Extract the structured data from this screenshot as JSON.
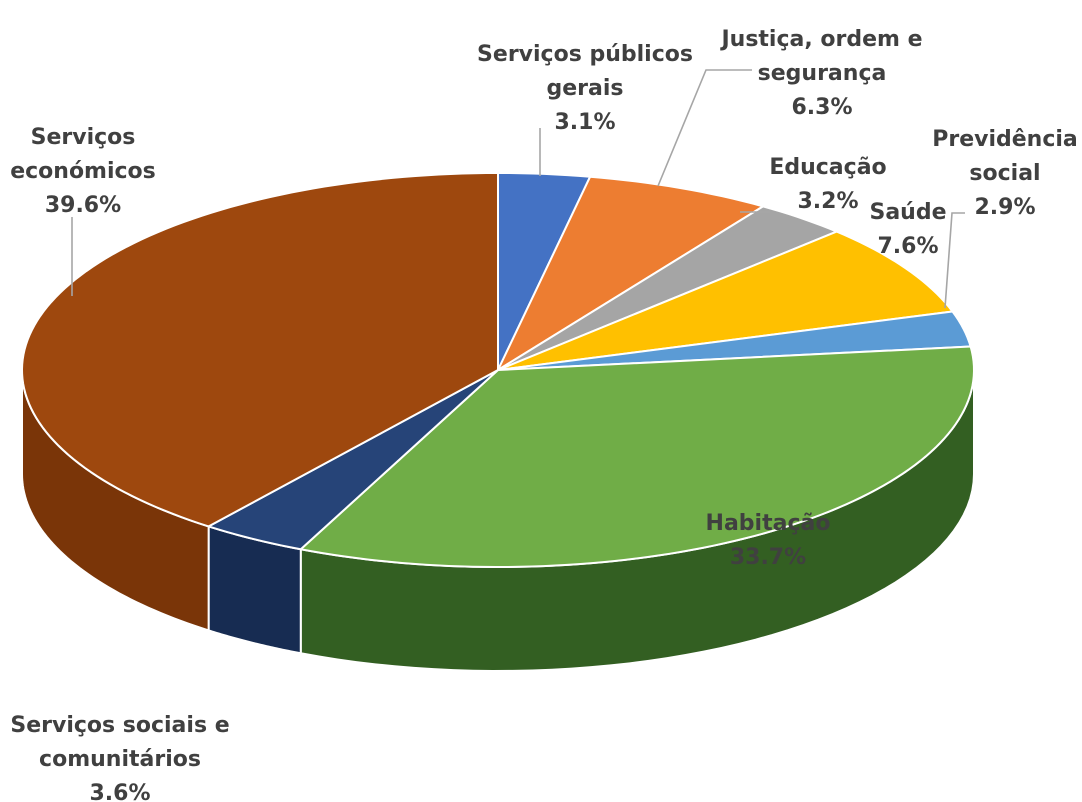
{
  "chart_data": {
    "type": "pie",
    "style": "3d",
    "title": "",
    "slices": [
      {
        "label_lines": [
          "Serviços públicos",
          "gerais"
        ],
        "value_label": "3.1%",
        "value": 3.1,
        "color": "#4472c4",
        "side": "#2c4d8a"
      },
      {
        "label_lines": [
          "Justiça, ordem e",
          "segurança"
        ],
        "value_label": "6.3%",
        "value": 6.3,
        "color": "#ed7d31",
        "side": "#b35a1f"
      },
      {
        "label_lines": [
          "Educação"
        ],
        "value_label": "3.2%",
        "value": 3.2,
        "color": "#a5a5a5",
        "side": "#7a7a7a"
      },
      {
        "label_lines": [
          "Saúde"
        ],
        "value_label": "7.6%",
        "value": 7.6,
        "color": "#ffc000",
        "side": "#c89400"
      },
      {
        "label_lines": [
          "Previdência",
          "social"
        ],
        "value_label": "2.9%",
        "value": 2.9,
        "color": "#5b9bd5",
        "side": "#3d74a8"
      },
      {
        "label_lines": [
          "Habitação"
        ],
        "value_label": "33.7%",
        "value": 33.7,
        "color": "#70ad47",
        "side": "#335f22"
      },
      {
        "label_lines": [
          "Serviços sociais e",
          "comunitários"
        ],
        "value_label": "3.6%",
        "value": 3.6,
        "color": "#264478",
        "side": "#172c52"
      },
      {
        "label_lines": [
          "Serviços",
          "económicos"
        ],
        "value_label": "39.6%",
        "value": 39.6,
        "color": "#9e480e",
        "side": "#7a3508"
      }
    ]
  }
}
